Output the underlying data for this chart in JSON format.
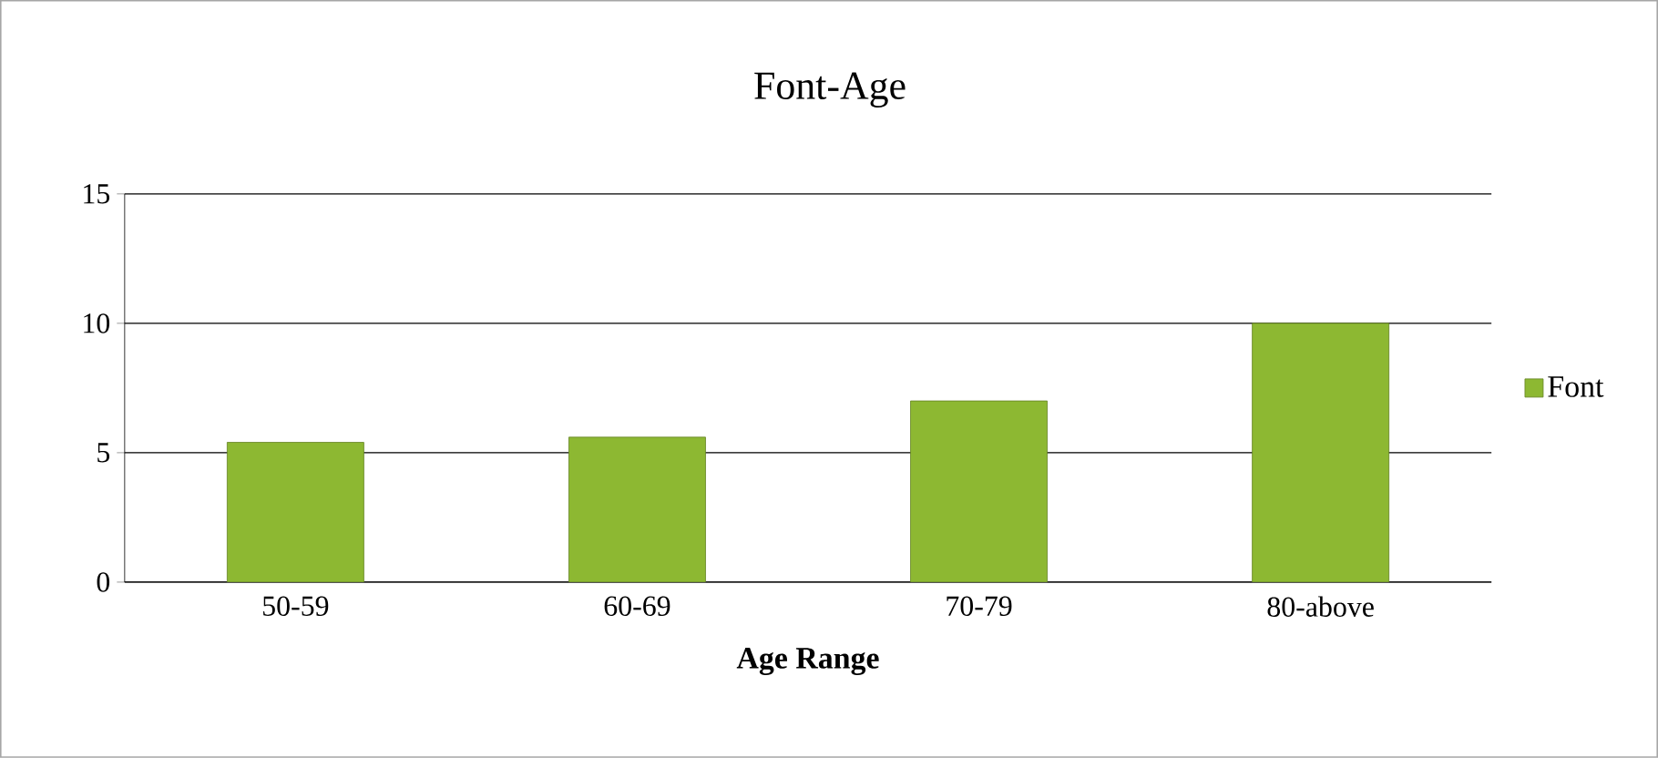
{
  "chart_data": {
    "type": "bar",
    "title": "Font-Age",
    "xlabel": "Age Range",
    "categories": [
      "50-59",
      "60-69",
      "70-79",
      "80-above"
    ],
    "series": [
      {
        "name": "Font",
        "color": "#8db832",
        "values": [
          5.4,
          5.6,
          7.0,
          10
        ]
      }
    ],
    "ylim": [
      0,
      15
    ],
    "yticks": [
      0,
      5,
      10,
      15
    ],
    "grid": "y",
    "legend": "right"
  }
}
